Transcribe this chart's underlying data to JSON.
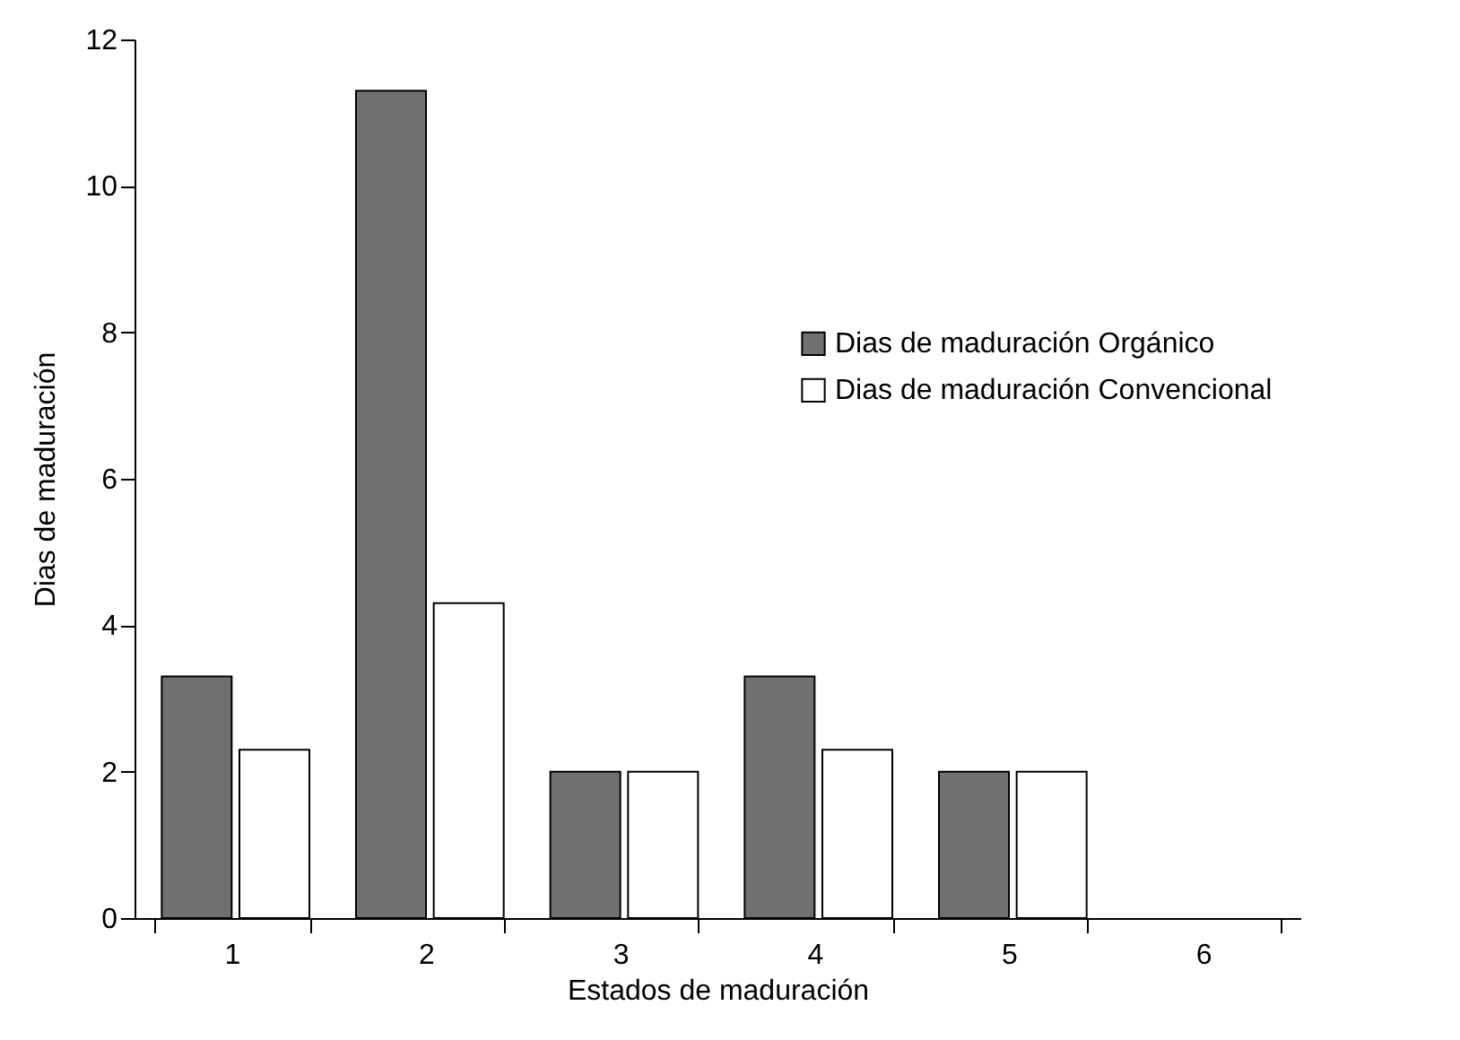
{
  "chart_data": {
    "type": "bar",
    "xlabel": "Estados de maduración",
    "ylabel": "Dias de maduración",
    "categories": [
      "1",
      "2",
      "3",
      "4",
      "5",
      "6"
    ],
    "series": [
      {
        "name": "Dias de maduración Orgánico",
        "color": "#707070",
        "values": [
          3.3,
          11.3,
          2,
          3.3,
          2,
          null
        ]
      },
      {
        "name": "Dias de maduración Convencional",
        "color": "#ffffff",
        "values": [
          2.3,
          4.3,
          2,
          2.3,
          2,
          null
        ]
      }
    ],
    "ylim": [
      0,
      12
    ],
    "yticks": [
      0,
      2,
      4,
      6,
      8,
      10,
      12
    ],
    "grid": false,
    "legend": "right"
  }
}
